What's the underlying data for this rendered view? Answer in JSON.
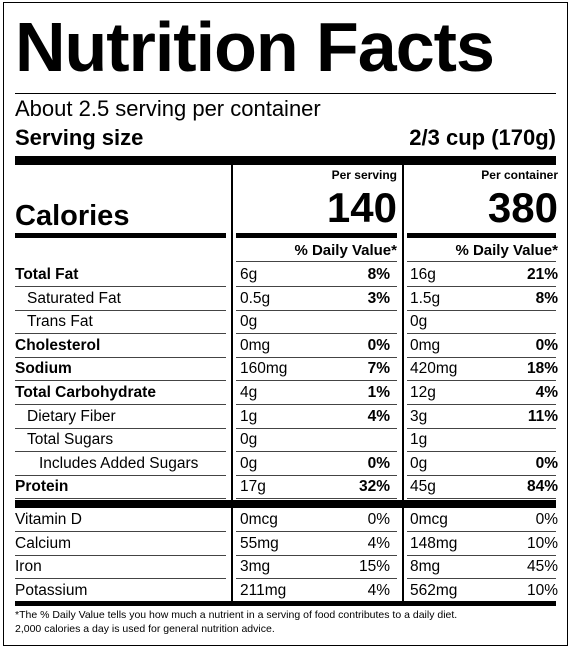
{
  "title": "Nutrition Facts",
  "servings_per_container": "About 2.5 serving per container",
  "serving_size_label": "Serving size",
  "serving_size_value": "2/3 cup (170g)",
  "columns": {
    "per_serving": "Per serving",
    "per_container": "Per container"
  },
  "calories": {
    "label": "Calories",
    "per_serving": "140",
    "per_container": "380"
  },
  "daily_value_header": "% Daily Value*",
  "nutrients": [
    {
      "name": "Total Fat",
      "bold": true,
      "indent": 0,
      "serving_amount": "6g",
      "serving_dv": "8%",
      "container_amount": "16g",
      "container_dv": "21%"
    },
    {
      "name": "Saturated Fat",
      "bold": false,
      "indent": 1,
      "serving_amount": "0.5g",
      "serving_dv": "3%",
      "container_amount": "1.5g",
      "container_dv": "8%"
    },
    {
      "name": "Trans Fat",
      "bold": false,
      "indent": 1,
      "serving_amount": "0g",
      "serving_dv": "",
      "container_amount": "0g",
      "container_dv": ""
    },
    {
      "name": "Cholesterol",
      "bold": true,
      "indent": 0,
      "serving_amount": "0mg",
      "serving_dv": "0%",
      "container_amount": "0mg",
      "container_dv": "0%"
    },
    {
      "name": "Sodium",
      "bold": true,
      "indent": 0,
      "serving_amount": "160mg",
      "serving_dv": "7%",
      "container_amount": "420mg",
      "container_dv": "18%"
    },
    {
      "name": "Total Carbohydrate",
      "bold": true,
      "indent": 0,
      "serving_amount": "4g",
      "serving_dv": "1%",
      "container_amount": "12g",
      "container_dv": "4%"
    },
    {
      "name": "Dietary Fiber",
      "bold": false,
      "indent": 1,
      "serving_amount": "1g",
      "serving_dv": "4%",
      "container_amount": "3g",
      "container_dv": "11%"
    },
    {
      "name": "Total Sugars",
      "bold": false,
      "indent": 1,
      "serving_amount": "0g",
      "serving_dv": "",
      "container_amount": "1g",
      "container_dv": ""
    },
    {
      "name": "Includes Added Sugars",
      "bold": false,
      "indent": 2,
      "serving_amount": "0g",
      "serving_dv": "0%",
      "container_amount": "0g",
      "container_dv": "0%"
    },
    {
      "name": "Protein",
      "bold": true,
      "indent": 0,
      "serving_amount": "17g",
      "serving_dv": "32%",
      "container_amount": "45g",
      "container_dv": "84%"
    }
  ],
  "micronutrients": [
    {
      "name": "Vitamin D",
      "serving_amount": "0mcg",
      "serving_dv": "0%",
      "container_amount": "0mcg",
      "container_dv": "0%"
    },
    {
      "name": "Calcium",
      "serving_amount": "55mg",
      "serving_dv": "4%",
      "container_amount": "148mg",
      "container_dv": "10%"
    },
    {
      "name": "Iron",
      "serving_amount": "3mg",
      "serving_dv": "15%",
      "container_amount": "8mg",
      "container_dv": "45%"
    },
    {
      "name": "Potassium",
      "serving_amount": "211mg",
      "serving_dv": "4%",
      "container_amount": "562mg",
      "container_dv": "10%"
    }
  ],
  "footnote_line1": "*The % Daily Value tells you how much a nutrient in a serving of food contributes to a daily diet.",
  "footnote_line2": "2,000 calories a day is used for general nutrition advice."
}
